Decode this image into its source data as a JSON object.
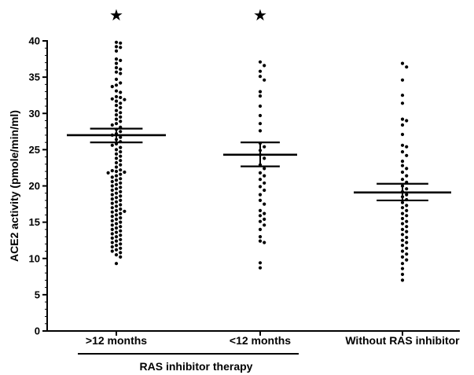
{
  "chart_data": {
    "type": "scatter",
    "subtype": "dot-plot with mean and SEM bars",
    "ylabel": "ACE2 activity (pmole/min/ml)",
    "ylim": [
      0,
      40
    ],
    "yticks": [
      "0",
      "5",
      "10",
      "15",
      "20",
      "25",
      "30",
      "35",
      "40"
    ],
    "categories": [
      ">12 months",
      "<12 months",
      "Without RAS inhibitor"
    ],
    "group_label": "RAS inhibitor therapy",
    "group_spans": [
      0,
      1
    ],
    "grid": false,
    "series": [
      {
        "category": ">12 months",
        "mean": 27.0,
        "sem_low": 26.0,
        "sem_high": 27.9,
        "significance": "★",
        "values": [
          39.8,
          39.7,
          39.2,
          39.1,
          38.6,
          37.5,
          37.3,
          36.9,
          36.3,
          36.1,
          35.7,
          35.5,
          34.7,
          34.2,
          33.9,
          33.7,
          33.1,
          32.9,
          32.3,
          32.2,
          32.0,
          31.9,
          31.7,
          31.4,
          31.1,
          30.8,
          30.4,
          30.1,
          29.8,
          29.5,
          29.2,
          28.9,
          28.6,
          28.4,
          28.1,
          27.8,
          27.5,
          27.2,
          27.0,
          26.7,
          26.4,
          26.1,
          25.8,
          25.6,
          25.3,
          25.0,
          24.7,
          24.4,
          24.1,
          23.8,
          23.5,
          23.2,
          22.9,
          22.6,
          22.2,
          22.1,
          22.0,
          21.9,
          21.8,
          21.6,
          21.4,
          21.2,
          21.0,
          20.8,
          20.6,
          20.4,
          20.2,
          20.0,
          19.8,
          19.6,
          19.4,
          19.2,
          19.0,
          18.8,
          18.6,
          18.4,
          18.2,
          18.0,
          17.8,
          17.6,
          17.4,
          17.2,
          17.0,
          16.8,
          16.6,
          16.5,
          16.4,
          16.2,
          16.0,
          15.8,
          15.6,
          15.4,
          15.2,
          15.0,
          14.8,
          14.6,
          14.4,
          14.2,
          14.0,
          13.8,
          13.6,
          13.4,
          13.2,
          13.0,
          12.8,
          12.6,
          12.4,
          12.2,
          12.0,
          11.8,
          11.6,
          11.4,
          11.2,
          11.0,
          10.8,
          10.5,
          10.2,
          9.3
        ]
      },
      {
        "category": "<12 months",
        "mean": 24.3,
        "sem_low": 22.7,
        "sem_high": 26.0,
        "significance": "★",
        "values": [
          37.1,
          36.6,
          35.8,
          35.1,
          34.6,
          33.0,
          32.4,
          31.0,
          29.7,
          28.6,
          27.6,
          25.9,
          25.4,
          24.9,
          24.3,
          23.8,
          22.9,
          22.4,
          21.8,
          21.4,
          20.9,
          20.4,
          19.9,
          19.4,
          18.8,
          18.0,
          17.5,
          16.6,
          16.2,
          15.9,
          15.4,
          15.1,
          14.6,
          14.0,
          13.0,
          12.4,
          12.2,
          9.4,
          8.7
        ]
      },
      {
        "category": "Without RAS inhibitor",
        "mean": 19.1,
        "sem_low": 18.0,
        "sem_high": 20.3,
        "values": [
          36.9,
          36.4,
          34.6,
          32.5,
          31.4,
          29.2,
          29.0,
          28.4,
          27.1,
          25.6,
          25.4,
          24.7,
          24.2,
          23.4,
          22.8,
          22.4,
          21.9,
          21.4,
          20.9,
          20.5,
          20.0,
          19.6,
          19.2,
          18.8,
          18.5,
          18.1,
          17.7,
          17.3,
          17.0,
          16.6,
          16.2,
          15.9,
          15.5,
          15.1,
          14.8,
          14.4,
          14.0,
          13.7,
          13.3,
          12.9,
          12.5,
          12.2,
          11.8,
          11.4,
          11.0,
          10.6,
          10.2,
          9.8,
          9.3,
          8.6,
          7.8,
          7.0
        ]
      }
    ]
  }
}
